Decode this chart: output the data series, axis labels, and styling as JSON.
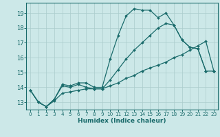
{
  "xlabel": "Humidex (Indice chaleur)",
  "background_color": "#cce8e8",
  "grid_color": "#aacccc",
  "line_color": "#1a6b6b",
  "xlim": [
    -0.5,
    23.5
  ],
  "ylim": [
    12.5,
    19.7
  ],
  "xticks": [
    0,
    1,
    2,
    3,
    4,
    5,
    6,
    7,
    8,
    9,
    10,
    11,
    12,
    13,
    14,
    15,
    16,
    17,
    18,
    19,
    20,
    21,
    22,
    23
  ],
  "yticks": [
    13,
    14,
    15,
    16,
    17,
    18,
    19
  ],
  "line1_x": [
    0,
    1,
    2,
    3,
    4,
    5,
    6,
    7,
    8,
    9,
    10,
    11,
    12,
    13,
    14,
    15,
    16,
    17,
    18,
    19,
    20,
    21,
    22,
    23
  ],
  "line1_y": [
    13.8,
    13.0,
    12.7,
    13.2,
    14.2,
    14.1,
    14.3,
    14.3,
    14.0,
    14.0,
    15.9,
    17.5,
    18.8,
    19.3,
    19.2,
    19.2,
    18.7,
    19.0,
    18.2,
    17.2,
    16.7,
    16.6,
    15.1,
    15.1
  ],
  "line2_x": [
    0,
    1,
    2,
    3,
    4,
    5,
    6,
    7,
    8,
    9,
    10,
    11,
    12,
    13,
    14,
    15,
    16,
    17,
    18,
    19,
    20,
    21,
    22,
    23
  ],
  "line2_y": [
    13.8,
    13.0,
    12.7,
    13.2,
    14.1,
    14.0,
    14.2,
    14.0,
    13.9,
    13.9,
    14.5,
    15.2,
    15.9,
    16.5,
    17.0,
    17.5,
    18.0,
    18.3,
    18.2,
    17.2,
    16.7,
    16.6,
    15.1,
    15.1
  ],
  "line3_x": [
    0,
    1,
    2,
    3,
    4,
    5,
    6,
    7,
    8,
    9,
    10,
    11,
    12,
    13,
    14,
    15,
    16,
    17,
    18,
    19,
    20,
    21,
    22,
    23
  ],
  "line3_y": [
    13.8,
    13.0,
    12.7,
    13.1,
    13.6,
    13.7,
    13.8,
    13.9,
    13.9,
    13.9,
    14.1,
    14.3,
    14.6,
    14.8,
    15.1,
    15.3,
    15.5,
    15.7,
    16.0,
    16.2,
    16.5,
    16.8,
    17.1,
    15.1
  ]
}
